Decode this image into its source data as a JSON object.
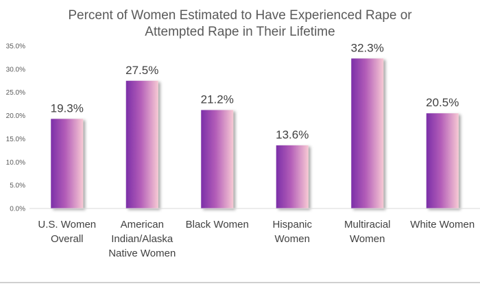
{
  "chart_data": {
    "type": "bar",
    "title_lines": [
      "Percent of Women Estimated to Have Experienced Rape or",
      "Attempted Rape in Their Lifetime"
    ],
    "categories": [
      [
        "U.S. Women",
        "Overall"
      ],
      [
        "American",
        "Indian/Alaska",
        "Native Women"
      ],
      [
        "Black Women"
      ],
      [
        "Hispanic",
        "Women"
      ],
      [
        "Multiracial",
        "Women"
      ],
      [
        "White Women"
      ]
    ],
    "values": [
      19.3,
      27.5,
      21.2,
      13.6,
      32.3,
      20.5
    ],
    "value_labels": [
      "19.3%",
      "27.5%",
      "21.2%",
      "13.6%",
      "32.3%",
      "20.5%"
    ],
    "yticks": [
      0,
      5,
      10,
      15,
      20,
      25,
      30,
      35
    ],
    "ytick_labels": [
      "0.0%",
      "5.0%",
      "10.0%",
      "15.0%",
      "20.0%",
      "25.0%",
      "30.0%",
      "35.0%"
    ],
    "ylim": [
      0,
      35
    ],
    "xlabel": "",
    "ylabel": "",
    "grid": false,
    "bar_color_start": "#7b2fa8",
    "bar_color_end": "#f7c9d4",
    "axis_color": "#d9d9d9",
    "text_color": "#404040"
  }
}
